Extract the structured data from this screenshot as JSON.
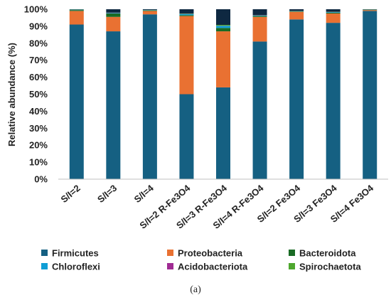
{
  "chart_data": {
    "type": "bar",
    "stacked": true,
    "percent": true,
    "ylabel": "Relative abundance (%)",
    "xlabel": "",
    "ylim": [
      0,
      100
    ],
    "ytick_step": 10,
    "grid": false,
    "legend_position": "bottom",
    "caption": "(a)",
    "categories": [
      "S/I=2",
      "S/I=3",
      "S/I=4",
      "S/I=2 R-Fe3O4",
      "S/I=3 R-Fe3O4",
      "S/I=4 R-Fe3O4",
      "S/I=2 Fe3O4",
      "S/I=3 Fe3O4",
      "S/I=4 Fe3O4"
    ],
    "series": [
      {
        "name": "Firmicutes",
        "color": "#156082",
        "values": [
          91,
          87,
          97,
          50,
          54,
          81,
          94,
          92,
          99
        ]
      },
      {
        "name": "Proteobacteria",
        "color": "#E97132",
        "values": [
          8,
          8.5,
          2,
          46,
          33,
          14.5,
          4.5,
          5.5,
          0.5
        ]
      },
      {
        "name": "Bacteroidota",
        "color": "#196B24",
        "values": [
          0.5,
          2,
          0.3,
          0.5,
          2,
          0.5,
          0.2,
          0.5,
          0.1
        ]
      },
      {
        "name": "Chloroflexi",
        "color": "#0F9ED5",
        "values": [
          0.2,
          0.3,
          0.2,
          0.7,
          1.2,
          0.3,
          0.2,
          0.3,
          0.1
        ]
      },
      {
        "name": "Acidobacteriota",
        "color": "#A02B93",
        "values": [
          0,
          0.1,
          0,
          0.1,
          0.1,
          0.1,
          0,
          0.1,
          0
        ]
      },
      {
        "name": "Spirochaetota",
        "color": "#4EA72E",
        "values": [
          0.1,
          0.1,
          0.1,
          0.2,
          0.5,
          0.1,
          0.1,
          0.1,
          0.1
        ]
      },
      {
        "name": "",
        "color": "#0E2841",
        "values": [
          0.2,
          2,
          0.4,
          2.5,
          9.2,
          3.5,
          1,
          1.5,
          0.2
        ]
      }
    ]
  }
}
